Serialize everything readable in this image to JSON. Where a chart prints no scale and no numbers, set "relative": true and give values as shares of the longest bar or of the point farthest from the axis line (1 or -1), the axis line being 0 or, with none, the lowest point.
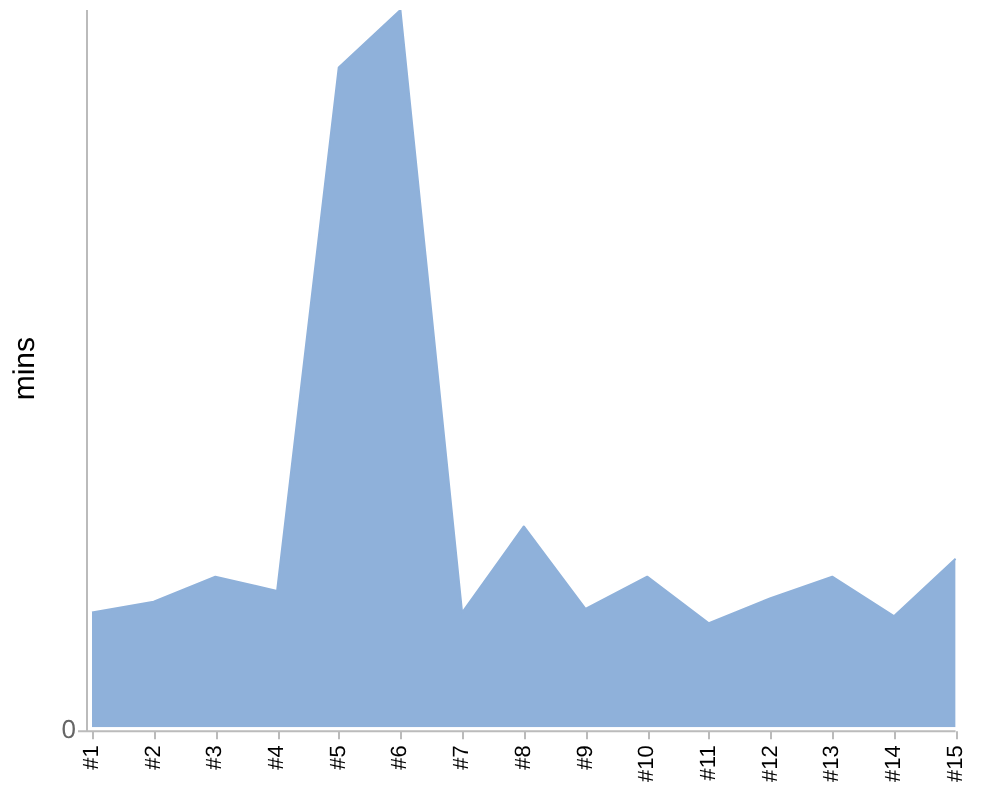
{
  "chart_data": {
    "type": "area",
    "ylabel": "mins",
    "relative": true,
    "color": "#8fb1da",
    "grid": false,
    "legend": false,
    "categories": [
      "#1",
      "#2",
      "#3",
      "#4",
      "#5",
      "#6",
      "#7",
      "#8",
      "#9",
      "#10",
      "#11",
      "#12",
      "#13",
      "#14",
      "#15"
    ],
    "values": [
      0.16,
      0.175,
      0.21,
      0.19,
      0.92,
      1,
      0.16,
      0.28,
      0.165,
      0.21,
      0.145,
      0.18,
      0.21,
      0.155,
      0.235
    ],
    "annotations": [
      "0"
    ]
  }
}
